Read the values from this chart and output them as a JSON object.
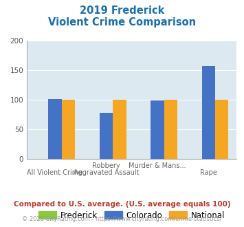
{
  "title_line1": "2019 Frederick",
  "title_line2": "Violent Crime Comparison",
  "title_color": "#1a6faf",
  "top_labels": [
    "",
    "Robbery",
    "Murder & Mans...",
    ""
  ],
  "bot_labels": [
    "All Violent Crime",
    "Aggravated Assault",
    "",
    "Rape"
  ],
  "series": {
    "Frederick": {
      "values": [
        0,
        0,
        0,
        0
      ],
      "color": "#8dc63f"
    },
    "Colorado": {
      "values": [
        101,
        78,
        99,
        157
      ],
      "color": "#4472c4"
    },
    "National": {
      "values": [
        100,
        100,
        100,
        100
      ],
      "color": "#f5a623"
    }
  },
  "ylim": [
    0,
    200
  ],
  "yticks": [
    0,
    50,
    100,
    150,
    200
  ],
  "plot_bg": "#dce9f0",
  "fig_bg": "#ffffff",
  "footnote1": "Compared to U.S. average. (U.S. average equals 100)",
  "footnote2": "© 2025 CityRating.com - https://www.cityrating.com/crime-statistics/",
  "footnote1_color": "#c0392b",
  "footnote2_color": "#999999",
  "legend_labels": [
    "Frederick",
    "Colorado",
    "National"
  ],
  "legend_colors": [
    "#8dc63f",
    "#4472c4",
    "#f5a623"
  ],
  "bar_width": 0.26
}
